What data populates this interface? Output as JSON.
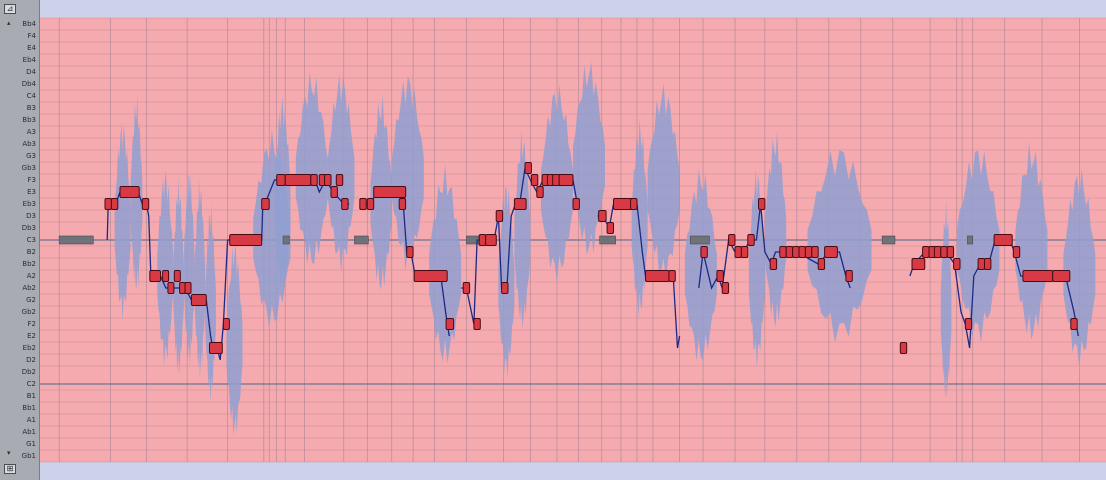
{
  "keyboard": {
    "top_button": "⊿",
    "bottom_button": "⊞",
    "note_labels": [
      "Bb4",
      "F4",
      "E4",
      "Eb4",
      "D4",
      "Db4",
      "C4",
      "B3",
      "Bb3",
      "A3",
      "Ab3",
      "G3",
      "Gb3",
      "F3",
      "E3",
      "Eb3",
      "D3",
      "Db3",
      "C3",
      "B2",
      "Bb2",
      "A2",
      "Ab2",
      "G2",
      "Gb2",
      "F2",
      "E2",
      "Eb2",
      "D2",
      "Db2",
      "C2",
      "B1",
      "Bb1",
      "A1",
      "Ab1",
      "G1",
      "Gb1"
    ]
  },
  "pitch_data": {
    "note_names": [
      "Bb4",
      "F4",
      "E4",
      "Eb4",
      "D4",
      "Db4",
      "C4",
      "B3",
      "Bb3",
      "A3",
      "Ab3",
      "G3",
      "Gb3",
      "F3",
      "E3",
      "Eb3",
      "D3",
      "Db3",
      "C3",
      "B2",
      "Bb2",
      "A2",
      "Ab2",
      "G2",
      "Gb2",
      "F2",
      "E2",
      "Eb2",
      "D2",
      "Db2",
      "C2",
      "B1",
      "Bb1",
      "A1",
      "Ab1",
      "G1",
      "Gb1"
    ],
    "root_note": "C3",
    "blobs": [
      {
        "start": 0.07,
        "end": 0.085,
        "note": "Db3"
      },
      {
        "start": 0.085,
        "end": 0.096,
        "note": "Eb3"
      },
      {
        "start": 0.11,
        "end": 0.125,
        "note": "A2"
      },
      {
        "start": 0.125,
        "end": 0.135,
        "note": "Ab2"
      },
      {
        "start": 0.135,
        "end": 0.145,
        "note": "A2"
      },
      {
        "start": 0.145,
        "end": 0.155,
        "note": "Ab2"
      },
      {
        "start": 0.155,
        "end": 0.165,
        "note": "Gb2"
      },
      {
        "start": 0.175,
        "end": 0.19,
        "note": "Eb2"
      },
      {
        "start": 0.2,
        "end": 0.235,
        "note": "C3"
      },
      {
        "start": 0.22,
        "end": 0.235,
        "note": "Eb3"
      },
      {
        "start": 0.24,
        "end": 0.27,
        "note": "F3"
      },
      {
        "start": 0.27,
        "end": 0.295,
        "note": "F3"
      },
      {
        "start": 0.31,
        "end": 0.33,
        "note": "Eb3"
      },
      {
        "start": 0.33,
        "end": 0.36,
        "note": "F3"
      },
      {
        "start": 0.365,
        "end": 0.395,
        "note": "A2"
      },
      {
        "start": 0.43,
        "end": 0.445,
        "note": "Ab2"
      },
      {
        "start": 0.445,
        "end": 0.46,
        "note": "C3"
      },
      {
        "start": 0.47,
        "end": 0.5,
        "note": "E3"
      },
      {
        "start": 0.5,
        "end": 0.53,
        "note": "Gb3"
      },
      {
        "start": 0.555,
        "end": 0.57,
        "note": "Db3"
      },
      {
        "start": 0.57,
        "end": 0.6,
        "note": "E3"
      },
      {
        "start": 0.605,
        "end": 0.635,
        "note": "A2"
      },
      {
        "start": 0.665,
        "end": 0.68,
        "note": "A2"
      },
      {
        "start": 0.68,
        "end": 0.7,
        "note": "C3"
      },
      {
        "start": 0.72,
        "end": 0.78,
        "note": "B2"
      },
      {
        "start": 0.845,
        "end": 0.855,
        "note": "Gb2"
      },
      {
        "start": 0.86,
        "end": 0.9,
        "note": "B2"
      },
      {
        "start": 0.915,
        "end": 0.945,
        "note": "B2"
      },
      {
        "start": 0.96,
        "end": 0.99,
        "note": "A2"
      }
    ],
    "notes": [
      {
        "start": 0.061,
        "end": 0.067,
        "note": "Eb3"
      },
      {
        "start": 0.067,
        "end": 0.073,
        "note": "Eb3"
      },
      {
        "start": 0.075,
        "end": 0.093,
        "note": "E3"
      },
      {
        "start": 0.096,
        "end": 0.102,
        "note": "Eb3"
      },
      {
        "start": 0.103,
        "end": 0.113,
        "note": "A2"
      },
      {
        "start": 0.115,
        "end": 0.12,
        "note": "A2"
      },
      {
        "start": 0.12,
        "end": 0.125,
        "note": "Ab2"
      },
      {
        "start": 0.126,
        "end": 0.131,
        "note": "A2"
      },
      {
        "start": 0.131,
        "end": 0.136,
        "note": "Ab2"
      },
      {
        "start": 0.136,
        "end": 0.141,
        "note": "Ab2"
      },
      {
        "start": 0.142,
        "end": 0.156,
        "note": "G2"
      },
      {
        "start": 0.159,
        "end": 0.171,
        "note": "Eb2"
      },
      {
        "start": 0.172,
        "end": 0.177,
        "note": "F2"
      },
      {
        "start": 0.178,
        "end": 0.208,
        "note": "C3"
      },
      {
        "start": 0.208,
        "end": 0.215,
        "note": "Eb3"
      },
      {
        "start": 0.222,
        "end": 0.23,
        "note": "F3"
      },
      {
        "start": 0.23,
        "end": 0.254,
        "note": "F3"
      },
      {
        "start": 0.254,
        "end": 0.26,
        "note": "F3"
      },
      {
        "start": 0.262,
        "end": 0.268,
        "note": "F3"
      },
      {
        "start": 0.267,
        "end": 0.273,
        "note": "F3"
      },
      {
        "start": 0.273,
        "end": 0.279,
        "note": "E3"
      },
      {
        "start": 0.278,
        "end": 0.284,
        "note": "F3"
      },
      {
        "start": 0.283,
        "end": 0.289,
        "note": "Eb3"
      },
      {
        "start": 0.3,
        "end": 0.306,
        "note": "Eb3"
      },
      {
        "start": 0.307,
        "end": 0.313,
        "note": "Eb3"
      },
      {
        "start": 0.313,
        "end": 0.343,
        "note": "E3"
      },
      {
        "start": 0.337,
        "end": 0.343,
        "note": "Eb3"
      },
      {
        "start": 0.344,
        "end": 0.35,
        "note": "B2"
      },
      {
        "start": 0.351,
        "end": 0.382,
        "note": "A2"
      },
      {
        "start": 0.381,
        "end": 0.388,
        "note": "F2"
      },
      {
        "start": 0.397,
        "end": 0.403,
        "note": "Ab2"
      },
      {
        "start": 0.407,
        "end": 0.413,
        "note": "F2"
      },
      {
        "start": 0.412,
        "end": 0.418,
        "note": "C3"
      },
      {
        "start": 0.418,
        "end": 0.428,
        "note": "C3"
      },
      {
        "start": 0.428,
        "end": 0.434,
        "note": "D3"
      },
      {
        "start": 0.433,
        "end": 0.439,
        "note": "Ab2"
      },
      {
        "start": 0.445,
        "end": 0.456,
        "note": "Eb3"
      },
      {
        "start": 0.455,
        "end": 0.461,
        "note": "Gb3"
      },
      {
        "start": 0.461,
        "end": 0.467,
        "note": "F3"
      },
      {
        "start": 0.466,
        "end": 0.472,
        "note": "E3"
      },
      {
        "start": 0.471,
        "end": 0.477,
        "note": "F3"
      },
      {
        "start": 0.476,
        "end": 0.482,
        "note": "F3"
      },
      {
        "start": 0.481,
        "end": 0.488,
        "note": "F3"
      },
      {
        "start": 0.487,
        "end": 0.5,
        "note": "F3"
      },
      {
        "start": 0.5,
        "end": 0.506,
        "note": "Eb3"
      },
      {
        "start": 0.524,
        "end": 0.531,
        "note": "D3"
      },
      {
        "start": 0.532,
        "end": 0.538,
        "note": "Db3"
      },
      {
        "start": 0.538,
        "end": 0.558,
        "note": "Eb3"
      },
      {
        "start": 0.554,
        "end": 0.56,
        "note": "Eb3"
      },
      {
        "start": 0.568,
        "end": 0.59,
        "note": "A2"
      },
      {
        "start": 0.59,
        "end": 0.596,
        "note": "A2"
      },
      {
        "start": 0.62,
        "end": 0.626,
        "note": "B2"
      },
      {
        "start": 0.635,
        "end": 0.641,
        "note": "A2"
      },
      {
        "start": 0.64,
        "end": 0.646,
        "note": "Ab2"
      },
      {
        "start": 0.646,
        "end": 0.652,
        "note": "C3"
      },
      {
        "start": 0.652,
        "end": 0.658,
        "note": "B2"
      },
      {
        "start": 0.658,
        "end": 0.664,
        "note": "B2"
      },
      {
        "start": 0.664,
        "end": 0.67,
        "note": "C3"
      },
      {
        "start": 0.674,
        "end": 0.68,
        "note": "Eb3"
      },
      {
        "start": 0.685,
        "end": 0.691,
        "note": "Bb2"
      },
      {
        "start": 0.694,
        "end": 0.7,
        "note": "B2"
      },
      {
        "start": 0.7,
        "end": 0.706,
        "note": "B2"
      },
      {
        "start": 0.706,
        "end": 0.712,
        "note": "B2"
      },
      {
        "start": 0.712,
        "end": 0.718,
        "note": "B2"
      },
      {
        "start": 0.718,
        "end": 0.724,
        "note": "B2"
      },
      {
        "start": 0.724,
        "end": 0.73,
        "note": "B2"
      },
      {
        "start": 0.73,
        "end": 0.736,
        "note": "Bb2"
      },
      {
        "start": 0.736,
        "end": 0.748,
        "note": "B2"
      },
      {
        "start": 0.756,
        "end": 0.762,
        "note": "A2"
      },
      {
        "start": 0.807,
        "end": 0.813,
        "note": "Eb2"
      },
      {
        "start": 0.818,
        "end": 0.83,
        "note": "Bb2"
      },
      {
        "start": 0.828,
        "end": 0.834,
        "note": "B2"
      },
      {
        "start": 0.834,
        "end": 0.84,
        "note": "B2"
      },
      {
        "start": 0.839,
        "end": 0.845,
        "note": "B2"
      },
      {
        "start": 0.845,
        "end": 0.851,
        "note": "B2"
      },
      {
        "start": 0.851,
        "end": 0.857,
        "note": "B2"
      },
      {
        "start": 0.857,
        "end": 0.863,
        "note": "Bb2"
      },
      {
        "start": 0.868,
        "end": 0.874,
        "note": "F2"
      },
      {
        "start": 0.88,
        "end": 0.886,
        "note": "Bb2"
      },
      {
        "start": 0.886,
        "end": 0.892,
        "note": "Bb2"
      },
      {
        "start": 0.895,
        "end": 0.912,
        "note": "C3"
      },
      {
        "start": 0.913,
        "end": 0.919,
        "note": "B2"
      },
      {
        "start": 0.922,
        "end": 0.95,
        "note": "A2"
      },
      {
        "start": 0.95,
        "end": 0.966,
        "note": "A2"
      },
      {
        "start": 0.967,
        "end": 0.973,
        "note": "F2"
      }
    ],
    "pitch_curve": [
      [
        [
          0.063,
          "C3"
        ],
        [
          0.064,
          "Eb3"
        ],
        [
          0.067,
          "Eb3"
        ],
        [
          0.071,
          "Eb3"
        ],
        [
          0.075,
          "E3"
        ],
        [
          0.092,
          "E3"
        ],
        [
          0.096,
          "Eb3"
        ],
        [
          0.1,
          "Eb3"
        ],
        [
          0.102,
          "D3"
        ],
        [
          0.104,
          "A2"
        ],
        [
          0.113,
          "A2"
        ],
        [
          0.118,
          "Ab2"
        ],
        [
          0.125,
          "Ab2"
        ],
        [
          0.131,
          "Ab2"
        ],
        [
          0.136,
          "Ab2"
        ],
        [
          0.142,
          "G2"
        ],
        [
          0.152,
          "G2"
        ],
        [
          0.156,
          "G2"
        ],
        [
          0.16,
          "E2"
        ],
        [
          0.162,
          "Eb2"
        ],
        [
          0.166,
          "Eb2"
        ],
        [
          0.169,
          "D2"
        ],
        [
          0.172,
          "F2"
        ],
        [
          0.176,
          "C3"
        ],
        [
          0.18,
          "C3"
        ],
        [
          0.208,
          "C3"
        ],
        [
          0.209,
          "Eb3"
        ],
        [
          0.211,
          "Eb3"
        ],
        [
          0.22,
          "F3"
        ],
        [
          0.23,
          "F3"
        ],
        [
          0.252,
          "F3"
        ],
        [
          0.258,
          "F3"
        ],
        [
          0.262,
          "E3"
        ],
        [
          0.268,
          "F3"
        ],
        [
          0.275,
          "E3"
        ],
        [
          0.285,
          "Eb3"
        ],
        [
          0.29,
          "Eb3"
        ]
      ],
      [
        [
          0.3,
          "Eb3"
        ],
        [
          0.31,
          "Eb3"
        ],
        [
          0.316,
          "E3"
        ],
        [
          0.34,
          "E3"
        ],
        [
          0.344,
          "B2"
        ],
        [
          0.348,
          "B2"
        ],
        [
          0.352,
          "A2"
        ],
        [
          0.37,
          "A2"
        ],
        [
          0.376,
          "A2"
        ],
        [
          0.382,
          "F2"
        ],
        [
          0.384,
          "E2"
        ]
      ],
      [
        [
          0.395,
          "Ab2"
        ],
        [
          0.4,
          "Ab2"
        ],
        [
          0.407,
          "F2"
        ],
        [
          0.41,
          "C3"
        ],
        [
          0.426,
          "C3"
        ],
        [
          0.43,
          "D3"
        ],
        [
          0.433,
          "Ab2"
        ],
        [
          0.438,
          "Ab2"
        ],
        [
          0.442,
          "D3"
        ],
        [
          0.446,
          "Eb3"
        ],
        [
          0.45,
          "Eb3"
        ],
        [
          0.455,
          "Gb3"
        ],
        [
          0.46,
          "F3"
        ],
        [
          0.466,
          "E3"
        ],
        [
          0.472,
          "F3"
        ],
        [
          0.48,
          "F3"
        ],
        [
          0.486,
          "F3"
        ],
        [
          0.5,
          "F3"
        ],
        [
          0.504,
          "Eb3"
        ],
        [
          0.506,
          "Eb3"
        ]
      ],
      [
        [
          0.523,
          "D3"
        ],
        [
          0.528,
          "D3"
        ],
        [
          0.534,
          "Db3"
        ],
        [
          0.538,
          "Eb3"
        ],
        [
          0.555,
          "Eb3"
        ],
        [
          0.56,
          "Eb3"
        ],
        [
          0.565,
          "B2"
        ],
        [
          0.568,
          "A2"
        ],
        [
          0.59,
          "A2"
        ],
        [
          0.594,
          "A2"
        ],
        [
          0.598,
          "Eb2"
        ],
        [
          0.6,
          "E2"
        ]
      ],
      [
        [
          0.618,
          "Ab2"
        ],
        [
          0.622,
          "B2"
        ],
        [
          0.63,
          "Ab2"
        ],
        [
          0.636,
          "A2"
        ],
        [
          0.64,
          "Ab2"
        ],
        [
          0.646,
          "C3"
        ],
        [
          0.652,
          "B2"
        ],
        [
          0.66,
          "B2"
        ],
        [
          0.666,
          "C3"
        ],
        [
          0.672,
          "C3"
        ],
        [
          0.676,
          "Eb3"
        ],
        [
          0.68,
          "B2"
        ],
        [
          0.686,
          "Bb2"
        ],
        [
          0.69,
          "B2"
        ],
        [
          0.71,
          "B2"
        ],
        [
          0.73,
          "Bb2"
        ],
        [
          0.74,
          "B2"
        ],
        [
          0.75,
          "B2"
        ],
        [
          0.756,
          "A2"
        ],
        [
          0.76,
          "Ab2"
        ]
      ],
      [
        [
          0.816,
          "A2"
        ],
        [
          0.82,
          "Bb2"
        ],
        [
          0.83,
          "B2"
        ],
        [
          0.84,
          "B2"
        ],
        [
          0.85,
          "B2"
        ],
        [
          0.858,
          "Bb2"
        ],
        [
          0.864,
          "Gb2"
        ],
        [
          0.868,
          "F2"
        ],
        [
          0.872,
          "Eb2"
        ],
        [
          0.876,
          "A2"
        ],
        [
          0.882,
          "Bb2"
        ],
        [
          0.89,
          "Bb2"
        ],
        [
          0.896,
          "C3"
        ],
        [
          0.91,
          "C3"
        ],
        [
          0.914,
          "B2"
        ],
        [
          0.92,
          "A2"
        ],
        [
          0.93,
          "A2"
        ],
        [
          0.95,
          "A2"
        ],
        [
          0.962,
          "A2"
        ],
        [
          0.97,
          "Gb2"
        ],
        [
          0.974,
          "E2"
        ]
      ]
    ],
    "gaps": [
      {
        "start": 0.018,
        "end": 0.05,
        "note": "C3"
      },
      {
        "start": 0.228,
        "end": 0.234,
        "note": "C3"
      },
      {
        "start": 0.295,
        "end": 0.308,
        "note": "C3"
      },
      {
        "start": 0.4,
        "end": 0.414,
        "note": "C3"
      },
      {
        "start": 0.525,
        "end": 0.54,
        "note": "C3"
      },
      {
        "start": 0.61,
        "end": 0.628,
        "note": "C3"
      },
      {
        "start": 0.79,
        "end": 0.802,
        "note": "C3"
      },
      {
        "start": 0.87,
        "end": 0.875,
        "note": "C3"
      }
    ],
    "grid_lines": [
      0.018,
      0.066,
      0.1,
      0.138,
      0.176,
      0.21,
      0.215,
      0.222,
      0.23,
      0.248,
      0.285,
      0.307,
      0.33,
      0.35,
      0.37,
      0.4,
      0.435,
      0.46,
      0.485,
      0.505,
      0.527,
      0.545,
      0.56,
      0.575,
      0.6,
      0.622,
      0.652,
      0.68,
      0.71,
      0.74,
      0.77,
      0.8,
      0.835,
      0.86,
      0.865,
      0.875,
      0.905,
      0.94,
      0.975
    ]
  },
  "colors": {
    "background": "#cdd2ea",
    "active_range": "#f4aaaf",
    "waveform": "#8f9fd1",
    "note_fill": "#d83a45",
    "note_border": "#4a0a12",
    "pitch_curve": "#1b2a86",
    "gap_bar": "#6f7278",
    "grid": "#7d6f82"
  }
}
